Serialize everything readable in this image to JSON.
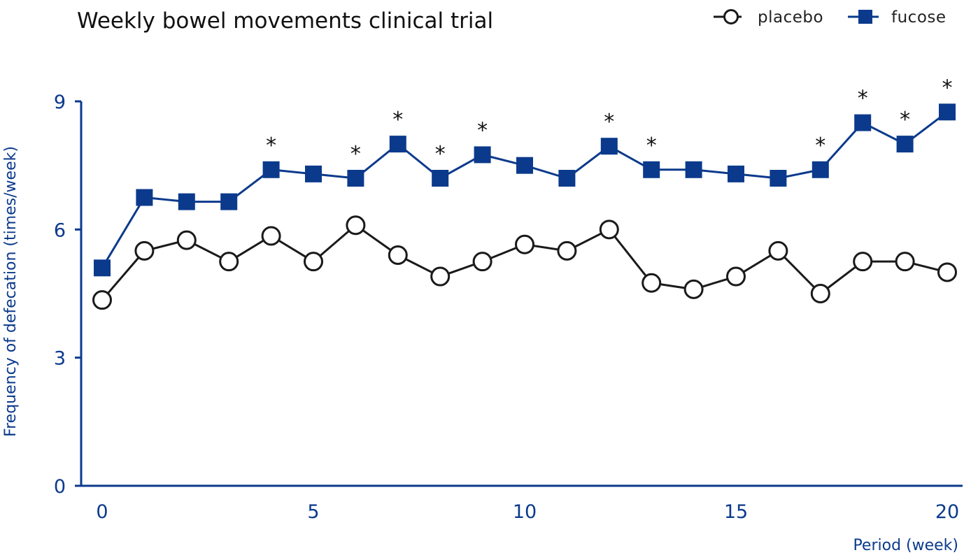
{
  "chart_data": {
    "type": "line",
    "title": "Weekly bowel movements clinical trial",
    "xlabel": "Period (week)",
    "ylabel": "Frequency of defecation (times/week)",
    "xlim": [
      0,
      20
    ],
    "ylim": [
      0,
      9
    ],
    "x_ticks": [
      0,
      5,
      10,
      15,
      20
    ],
    "y_ticks": [
      0,
      3,
      6,
      9
    ],
    "x": [
      0,
      1,
      2,
      3,
      4,
      5,
      6,
      7,
      8,
      9,
      10,
      11,
      12,
      13,
      14,
      15,
      16,
      17,
      18,
      19,
      20
    ],
    "series": [
      {
        "name": "placebo",
        "marker": "open-circle",
        "color": "#1a1a1a",
        "values": [
          4.35,
          5.5,
          5.75,
          5.25,
          5.85,
          5.25,
          6.1,
          5.4,
          4.9,
          5.25,
          5.65,
          5.5,
          6.0,
          4.75,
          4.6,
          4.9,
          5.5,
          4.5,
          5.25,
          5.25,
          5.0
        ]
      },
      {
        "name": "fucose",
        "marker": "filled-square",
        "color": "#0b3a8c",
        "values": [
          5.1,
          6.75,
          6.65,
          6.65,
          7.4,
          7.3,
          7.2,
          8.0,
          7.2,
          7.75,
          7.5,
          7.2,
          7.95,
          7.4,
          7.4,
          7.3,
          7.2,
          7.4,
          8.5,
          8.0,
          8.75
        ]
      }
    ],
    "significance_marker": "*",
    "significant_x": [
      4,
      6,
      7,
      8,
      9,
      12,
      13,
      17,
      18,
      19,
      20
    ],
    "legend_position": "top-right",
    "grid": false,
    "axis_color": "#0b3a8c"
  }
}
